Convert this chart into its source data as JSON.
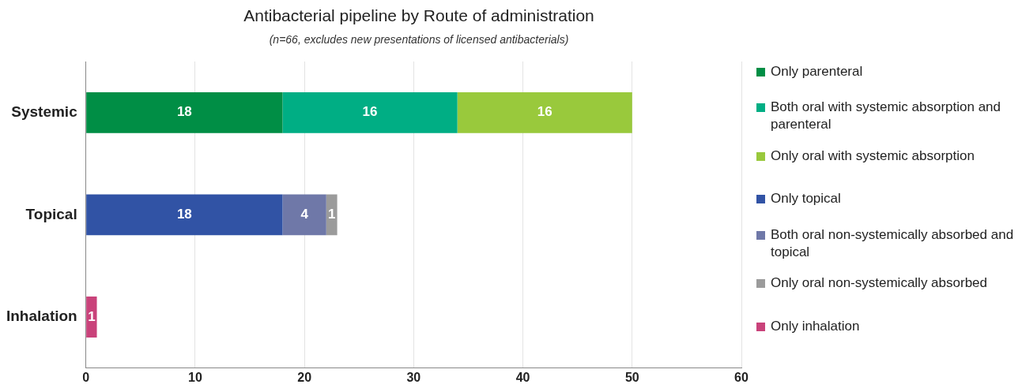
{
  "chart_data": {
    "type": "bar",
    "orientation": "horizontal",
    "stacked": true,
    "title": "Antibacterial pipeline by Route of administration",
    "subtitle": "(n=66, excludes new presentations of licensed antibacterials)",
    "categories": [
      "Systemic",
      "Topical",
      "Inhalation"
    ],
    "series": [
      {
        "name": "Only parenteral",
        "color": "#008e45",
        "values": [
          18,
          null,
          null
        ]
      },
      {
        "name": "Both oral with systemic absorption and parenteral",
        "color": "#00ae84",
        "values": [
          16,
          null,
          null
        ]
      },
      {
        "name": "Only oral with systemic absorption",
        "color": "#99c93c",
        "values": [
          16,
          null,
          null
        ]
      },
      {
        "name": "Only topical",
        "color": "#3153a5",
        "values": [
          null,
          18,
          null
        ]
      },
      {
        "name": "Both oral non-systemically absorbed and topical",
        "color": "#6f78a8",
        "values": [
          null,
          4,
          null
        ]
      },
      {
        "name": "Only oral non-systemically absorbed",
        "color": "#9b9b9b",
        "values": [
          null,
          1,
          null
        ]
      },
      {
        "name": "Only inhalation",
        "color": "#c9427a",
        "values": [
          null,
          null,
          1
        ]
      }
    ],
    "xlim": [
      0,
      60
    ],
    "xticks": [
      0,
      10,
      20,
      30,
      40,
      50,
      60
    ],
    "grid": "x",
    "legend": "right",
    "data_labels": true
  }
}
